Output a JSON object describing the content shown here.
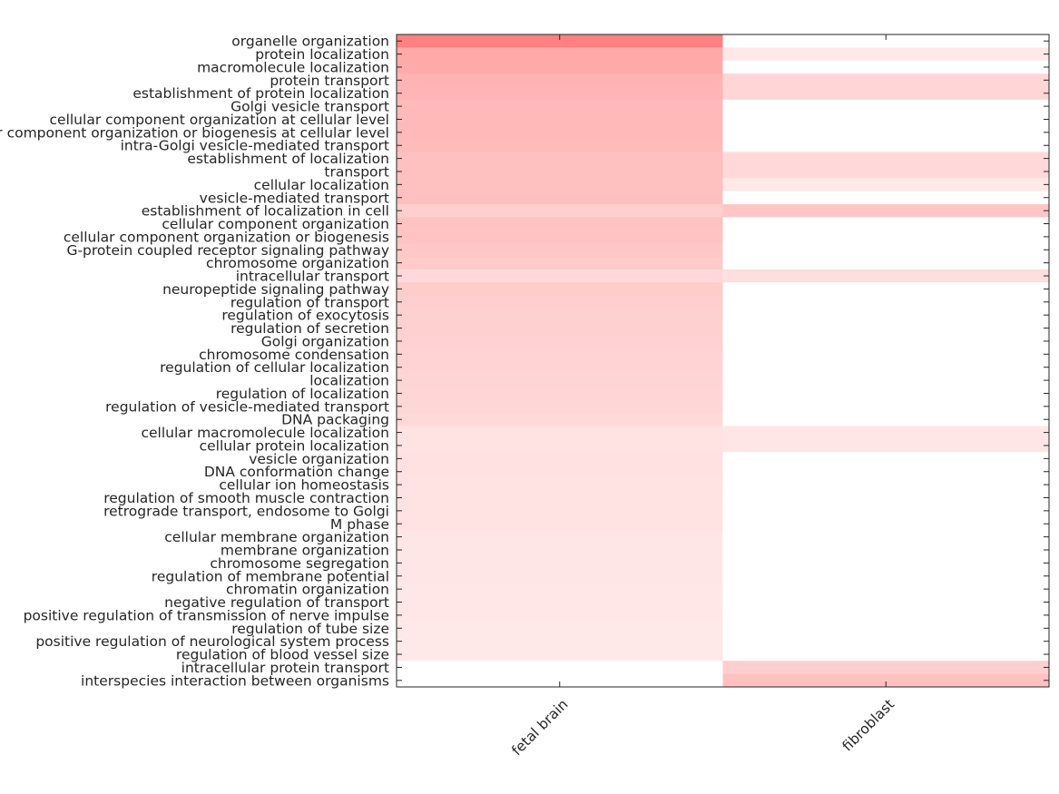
{
  "chart_data": {
    "type": "heatmap",
    "columns": [
      "fetal brain",
      "fibroblast"
    ],
    "rows": [
      "organelle organization",
      "protein localization",
      "macromolecule localization",
      "protein transport",
      "establishment of protein localization",
      "Golgi vesicle transport",
      "cellular component organization at cellular level",
      "cellular component organization or biogenesis at cellular level",
      "intra-Golgi vesicle-mediated transport",
      "establishment of localization",
      "transport",
      "cellular localization",
      "vesicle-mediated transport",
      "establishment of localization in cell",
      "cellular component organization",
      "cellular component organization or biogenesis",
      "G-protein coupled receptor signaling pathway",
      "chromosome organization",
      "intracellular transport",
      "neuropeptide signaling pathway",
      "regulation of transport",
      "regulation of exocytosis",
      "regulation of secretion",
      "Golgi organization",
      "chromosome condensation",
      "regulation of cellular localization",
      "localization",
      "regulation of localization",
      "regulation of vesicle-mediated transport",
      "DNA packaging",
      "cellular macromolecule localization",
      "cellular protein localization",
      "vesicle organization",
      "DNA conformation change",
      "cellular ion homeostasis",
      "regulation of smooth muscle contraction",
      "retrograde transport, endosome to Golgi",
      "M phase",
      "cellular membrane organization",
      "membrane organization",
      "chromosome segregation",
      "regulation of membrane potential",
      "chromatin organization",
      "negative regulation of transport",
      "positive regulation of transmission of nerve impulse",
      "regulation of tube size",
      "positive regulation of neurological system process",
      "regulation of blood vessel size",
      "intracellular protein transport",
      "interspecies interaction between organisms"
    ],
    "values": [
      [
        1.0,
        0.0
      ],
      [
        0.68,
        0.18
      ],
      [
        0.66,
        0.0
      ],
      [
        0.6,
        0.33
      ],
      [
        0.58,
        0.33
      ],
      [
        0.55,
        0.0
      ],
      [
        0.55,
        0.0
      ],
      [
        0.55,
        0.0
      ],
      [
        0.54,
        0.0
      ],
      [
        0.5,
        0.3
      ],
      [
        0.5,
        0.3
      ],
      [
        0.5,
        0.18
      ],
      [
        0.5,
        0.0
      ],
      [
        0.38,
        0.45
      ],
      [
        0.48,
        0.0
      ],
      [
        0.47,
        0.0
      ],
      [
        0.44,
        0.0
      ],
      [
        0.42,
        0.0
      ],
      [
        0.3,
        0.26
      ],
      [
        0.4,
        0.0
      ],
      [
        0.38,
        0.0
      ],
      [
        0.37,
        0.0
      ],
      [
        0.37,
        0.0
      ],
      [
        0.36,
        0.0
      ],
      [
        0.35,
        0.0
      ],
      [
        0.35,
        0.0
      ],
      [
        0.34,
        0.0
      ],
      [
        0.33,
        0.0
      ],
      [
        0.32,
        0.0
      ],
      [
        0.31,
        0.0
      ],
      [
        0.22,
        0.2
      ],
      [
        0.22,
        0.2
      ],
      [
        0.24,
        0.0
      ],
      [
        0.24,
        0.0
      ],
      [
        0.23,
        0.0
      ],
      [
        0.22,
        0.0
      ],
      [
        0.22,
        0.0
      ],
      [
        0.22,
        0.0
      ],
      [
        0.2,
        0.0
      ],
      [
        0.2,
        0.0
      ],
      [
        0.2,
        0.0
      ],
      [
        0.2,
        0.0
      ],
      [
        0.19,
        0.0
      ],
      [
        0.19,
        0.0
      ],
      [
        0.19,
        0.0
      ],
      [
        0.18,
        0.0
      ],
      [
        0.18,
        0.0
      ],
      [
        0.18,
        0.0
      ],
      [
        0.0,
        0.38
      ],
      [
        0.0,
        0.5
      ]
    ],
    "color_scale": {
      "low": "#ffffff",
      "high": "#ff8080"
    },
    "colorbar": false,
    "grid": false
  }
}
